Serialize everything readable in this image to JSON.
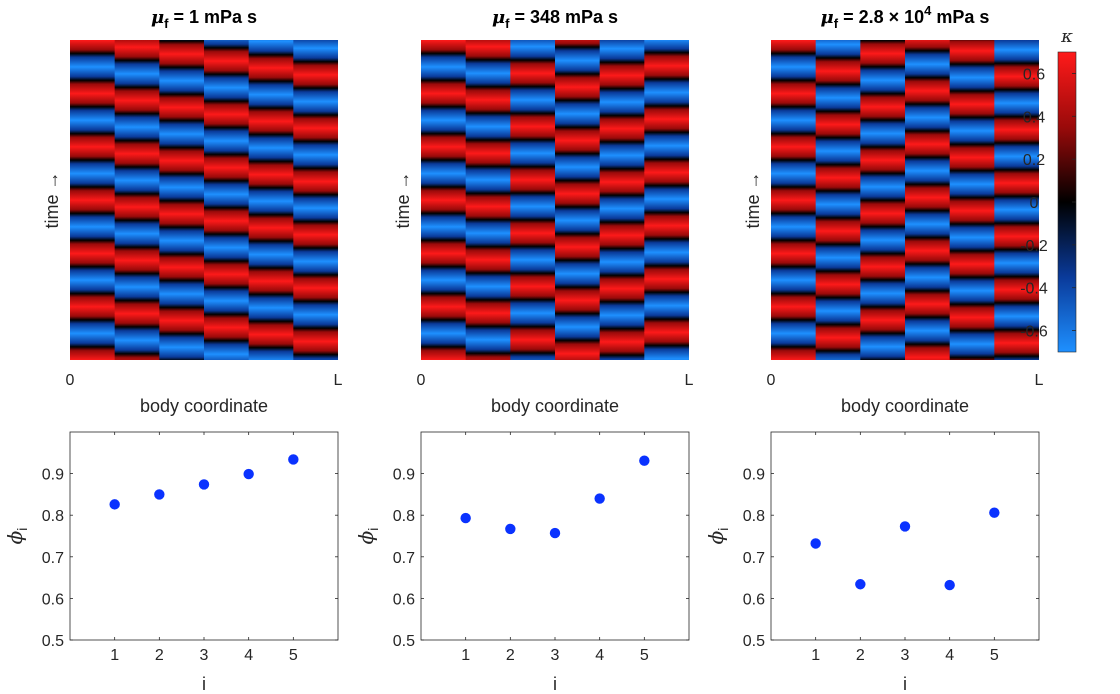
{
  "chart_data": [
    {
      "type": "heatmap",
      "title": {
        "sym": "μ",
        "sub": "f",
        "text": " = 1 mPa s"
      },
      "xlabel": "body coordinate",
      "ylabel": "time →",
      "x_ticks": [
        "0",
        "L"
      ],
      "segments": 6,
      "stripe_shift_per_segment": [
        0,
        0.13,
        0.26,
        0.39,
        0.52,
        0.65
      ]
    },
    {
      "type": "heatmap",
      "title": {
        "sym": "μ",
        "sub": "f",
        "text": " = 348 mPa s"
      },
      "xlabel": "body coordinate",
      "ylabel": "time →",
      "x_ticks": [
        "0",
        "L"
      ],
      "segments": 6,
      "stripe_shift_per_segment": [
        0,
        0.12,
        0.62,
        0.88,
        0.66,
        0.48
      ]
    },
    {
      "type": "heatmap",
      "title": {
        "sym": "μ",
        "sub": "f",
        "text": " = 2.8 × 10",
        "sup": "4",
        "text2": " mPa s"
      },
      "xlabel": "body coordinate",
      "ylabel": "time →",
      "x_ticks": [
        "0",
        "L"
      ],
      "segments": 6,
      "stripe_shift_per_segment": [
        0,
        0.58,
        0.25,
        0.95,
        0.2,
        0.68
      ]
    },
    {
      "type": "scatter",
      "xlabel": "i",
      "ylabel": {
        "sym": "ϕ",
        "sub": "i"
      },
      "x": [
        1,
        2,
        3,
        4,
        5
      ],
      "y": [
        0.826,
        0.85,
        0.874,
        0.899,
        0.934
      ],
      "xlim": [
        0,
        6
      ],
      "ylim": [
        0.5,
        1.0
      ],
      "yticks": [
        0.5,
        0.6,
        0.7,
        0.8,
        0.9
      ]
    },
    {
      "type": "scatter",
      "xlabel": "i",
      "ylabel": {
        "sym": "ϕ",
        "sub": "i"
      },
      "x": [
        1,
        2,
        3,
        4,
        5
      ],
      "y": [
        0.793,
        0.767,
        0.757,
        0.84,
        0.931
      ],
      "xlim": [
        0,
        6
      ],
      "ylim": [
        0.5,
        1.0
      ],
      "yticks": [
        0.5,
        0.6,
        0.7,
        0.8,
        0.9
      ]
    },
    {
      "type": "scatter",
      "xlabel": "i",
      "ylabel": {
        "sym": "ϕ",
        "sub": "i"
      },
      "x": [
        1,
        2,
        3,
        4,
        5
      ],
      "y": [
        0.732,
        0.634,
        0.773,
        0.632,
        0.806
      ],
      "xlim": [
        0,
        6
      ],
      "ylim": [
        0.5,
        1.0
      ],
      "yticks": [
        0.5,
        0.6,
        0.7,
        0.8,
        0.9
      ]
    }
  ],
  "colorbar": {
    "label": "κ",
    "range": [
      -0.7,
      0.7
    ],
    "ticks": [
      0.6,
      0.4,
      0.2,
      0,
      -0.2,
      -0.4,
      -0.6
    ],
    "tick_labels": [
      "0.6",
      "0.4",
      "0.2",
      "0",
      "-0.2",
      "-0.4",
      "-0.6"
    ],
    "colormap": [
      "#1e90ff",
      "#0a3a9a",
      "#000000",
      "#9a0a0a",
      "#ff1a1a"
    ]
  },
  "colors": {
    "marker": "#0a32ff",
    "axis": "#262626"
  }
}
